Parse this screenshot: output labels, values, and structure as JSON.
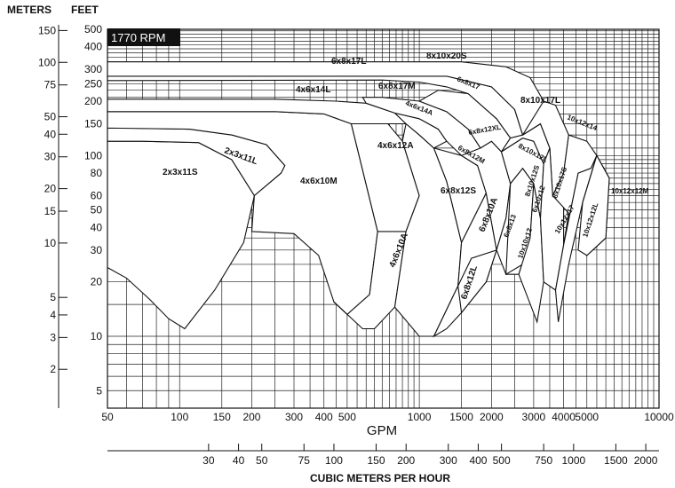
{
  "chart_data": {
    "type": "area",
    "title": "1770 RPM",
    "xlabel": "GPM",
    "x2label": "CUBIC METERS PER HOUR",
    "ylabel_left": "METERS",
    "ylabel_right": "FEET",
    "x_scale": "log",
    "y_scale": "log",
    "xlim": [
      50,
      10000
    ],
    "ylim_feet": [
      4,
      500
    ],
    "x_ticks": [
      "50",
      "100",
      "150",
      "200",
      "300",
      "400",
      "500",
      "1000",
      "1500",
      "2000",
      "3000",
      "4000",
      "5000",
      "10000"
    ],
    "x2_ticks": [
      "30",
      "40",
      "50",
      "75",
      "100",
      "150",
      "200",
      "300",
      "400",
      "500",
      "750",
      "1000",
      "1500",
      "2000"
    ],
    "feet_ticks": [
      "500",
      "400",
      "300",
      "250",
      "200",
      "150",
      "100",
      "80",
      "60",
      "50",
      "40",
      "30",
      "20",
      "10",
      "5"
    ],
    "meter_ticks": [
      "150",
      "100",
      "75",
      "50",
      "40",
      "30",
      "20",
      "15",
      "10",
      "5",
      "4",
      "3",
      "2"
    ],
    "grid": true,
    "series": [
      {
        "name": "2x3x11S",
        "points": [
          [
            50,
            24
          ],
          [
            60,
            21
          ],
          [
            75,
            16
          ],
          [
            90,
            12.5
          ],
          [
            105,
            11
          ],
          [
            140,
            18
          ],
          [
            185,
            33
          ],
          [
            205,
            60
          ],
          [
            165,
            95
          ],
          [
            120,
            118
          ],
          [
            70,
            120
          ],
          [
            50,
            120
          ]
        ]
      },
      {
        "name": "2x3x11L",
        "points": [
          [
            205,
            60
          ],
          [
            265,
            80
          ],
          [
            275,
            88
          ],
          [
            230,
            115
          ],
          [
            165,
            130
          ],
          [
            110,
            140
          ],
          [
            60,
            142
          ],
          [
            50,
            142
          ],
          [
            50,
            120
          ],
          [
            70,
            120
          ],
          [
            120,
            118
          ],
          [
            165,
            95
          ]
        ]
      },
      {
        "name": "4x6x10M",
        "points": [
          [
            200,
            38
          ],
          [
            300,
            37
          ],
          [
            380,
            28
          ],
          [
            440,
            15.5
          ],
          [
            500,
            13.2
          ],
          [
            620,
            17
          ],
          [
            670,
            38
          ],
          [
            520,
            150
          ],
          [
            400,
            170
          ],
          [
            250,
            175
          ],
          [
            100,
            175
          ],
          [
            50,
            175
          ],
          [
            50,
            142
          ],
          [
            110,
            140
          ],
          [
            165,
            130
          ],
          [
            230,
            115
          ],
          [
            275,
            88
          ],
          [
            265,
            80
          ],
          [
            205,
            60
          ]
        ]
      },
      {
        "name": "4x6x10A",
        "points": [
          [
            440,
            15.5
          ],
          [
            580,
            11
          ],
          [
            650,
            11
          ],
          [
            790,
            14.5
          ],
          [
            880,
            38
          ],
          [
            670,
            38
          ],
          [
            620,
            17
          ],
          [
            500,
            13.2
          ]
        ]
      },
      {
        "name": "4x6x12A",
        "points": [
          [
            670,
            38
          ],
          [
            880,
            38
          ],
          [
            1000,
            60
          ],
          [
            850,
            120
          ],
          [
            740,
            150
          ],
          [
            520,
            150
          ]
        ]
      },
      {
        "name": "4x6x14L",
        "points": [
          [
            50,
            205
          ],
          [
            250,
            205
          ],
          [
            450,
            200
          ],
          [
            600,
            195
          ],
          [
            790,
            172
          ],
          [
            880,
            150
          ],
          [
            740,
            150
          ],
          [
            520,
            150
          ],
          [
            400,
            170
          ],
          [
            250,
            175
          ],
          [
            100,
            175
          ],
          [
            50,
            175
          ]
        ]
      },
      {
        "name": "6x8x12S",
        "points": [
          [
            790,
            14.5
          ],
          [
            1000,
            10
          ],
          [
            1150,
            10
          ],
          [
            1450,
            19
          ],
          [
            1500,
            33
          ],
          [
            1300,
            72
          ],
          [
            1150,
            110
          ],
          [
            1000,
            130
          ],
          [
            880,
            150
          ],
          [
            850,
            120
          ],
          [
            1000,
            60
          ],
          [
            880,
            38
          ]
        ]
      },
      {
        "name": "6x8x12M",
        "points": [
          [
            1300,
            72
          ],
          [
            1500,
            33
          ],
          [
            1900,
            62
          ],
          [
            1750,
            88
          ],
          [
            1500,
            100
          ],
          [
            1150,
            110
          ]
        ]
      },
      {
        "name": "6x8x12L",
        "points": [
          [
            1150,
            10
          ],
          [
            1300,
            11
          ],
          [
            1500,
            13.5
          ],
          [
            1900,
            20
          ],
          [
            2100,
            30
          ],
          [
            1900,
            62
          ],
          [
            1500,
            33
          ],
          [
            1450,
            19
          ]
        ]
      },
      {
        "name": "6x8x10A",
        "points": [
          [
            1450,
            19
          ],
          [
            1650,
            27
          ],
          [
            2100,
            30
          ],
          [
            1900,
            20
          ],
          [
            1500,
            13.5
          ]
        ]
      },
      {
        "name": "4x6x14A",
        "points": [
          [
            880,
            150
          ],
          [
            1000,
            130
          ],
          [
            1150,
            110
          ],
          [
            1300,
            120
          ],
          [
            1200,
            140
          ],
          [
            1000,
            160
          ],
          [
            790,
            172
          ]
        ]
      },
      {
        "name": "6x8x17M",
        "points": [
          [
            600,
            195
          ],
          [
            790,
            172
          ],
          [
            1000,
            160
          ],
          [
            1200,
            140
          ],
          [
            1300,
            120
          ],
          [
            1500,
            100
          ],
          [
            1750,
            88
          ],
          [
            1800,
            110
          ],
          [
            1600,
            140
          ],
          [
            1300,
            175
          ],
          [
            1000,
            200
          ],
          [
            700,
            210
          ],
          [
            580,
            210
          ]
        ]
      },
      {
        "name": "6x8x12XL",
        "points": [
          [
            1500,
            100
          ],
          [
            1750,
            88
          ],
          [
            1900,
            62
          ],
          [
            2100,
            30
          ],
          [
            2300,
            45
          ],
          [
            2400,
            70
          ],
          [
            2200,
            105
          ],
          [
            2000,
            120
          ],
          [
            1800,
            110
          ]
        ]
      },
      {
        "name": "6x8x13",
        "points": [
          [
            2100,
            30
          ],
          [
            2300,
            22
          ],
          [
            2600,
            22
          ],
          [
            2900,
            35
          ],
          [
            2400,
            70
          ],
          [
            2300,
            45
          ]
        ]
      },
      {
        "name": "6x8x17",
        "points": [
          [
            1000,
            200
          ],
          [
            1300,
            175
          ],
          [
            1600,
            140
          ],
          [
            1800,
            110
          ],
          [
            2000,
            120
          ],
          [
            2200,
            105
          ],
          [
            2400,
            125
          ],
          [
            2100,
            160
          ],
          [
            1600,
            220
          ],
          [
            1200,
            230
          ]
        ]
      },
      {
        "name": "6x8x17L",
        "points": [
          [
            50,
            260
          ],
          [
            700,
            262
          ],
          [
            1000,
            255
          ],
          [
            1300,
            240
          ],
          [
            1600,
            220
          ],
          [
            2100,
            160
          ],
          [
            2400,
            125
          ],
          [
            2700,
            130
          ],
          [
            2500,
            180
          ],
          [
            2000,
            240
          ],
          [
            1300,
            275
          ],
          [
            50,
            275
          ]
        ]
      },
      {
        "name": "6x10x12",
        "points": [
          [
            2300,
            22
          ],
          [
            2700,
            25
          ],
          [
            2900,
            35
          ],
          [
            3000,
            70
          ],
          [
            2700,
            85
          ],
          [
            2400,
            70
          ]
        ]
      },
      {
        "name": "10x10x12",
        "points": [
          [
            2600,
            22
          ],
          [
            3100,
            12
          ],
          [
            3300,
            20
          ],
          [
            3200,
            45
          ],
          [
            3000,
            70
          ],
          [
            2900,
            35
          ]
        ]
      },
      {
        "name": "8x10x12S",
        "points": [
          [
            2400,
            70
          ],
          [
            2700,
            85
          ],
          [
            3000,
            70
          ],
          [
            3200,
            45
          ],
          [
            3300,
            90
          ],
          [
            3000,
            120
          ],
          [
            2700,
            125
          ],
          [
            2200,
            105
          ]
        ]
      },
      {
        "name": "8x10x12L",
        "points": [
          [
            2200,
            105
          ],
          [
            2700,
            125
          ],
          [
            3000,
            120
          ],
          [
            3300,
            90
          ],
          [
            3500,
            110
          ],
          [
            3200,
            150
          ],
          [
            2700,
            130
          ],
          [
            2400,
            125
          ]
        ]
      },
      {
        "name": "8x10x20S",
        "points": [
          [
            50,
            275
          ],
          [
            1300,
            275
          ],
          [
            2000,
            240
          ],
          [
            2500,
            180
          ],
          [
            2700,
            130
          ],
          [
            3200,
            150
          ],
          [
            3300,
            200
          ],
          [
            2900,
            270
          ],
          [
            2300,
            310
          ],
          [
            1500,
            330
          ],
          [
            50,
            330
          ]
        ]
      },
      {
        "name": "8x10x17L",
        "points": [
          [
            2700,
            130
          ],
          [
            3200,
            150
          ],
          [
            3500,
            110
          ],
          [
            3600,
            60
          ],
          [
            4000,
            80
          ],
          [
            4200,
            130
          ],
          [
            3700,
            190
          ],
          [
            3300,
            200
          ]
        ]
      },
      {
        "name": "8x10x17S",
        "points": [
          [
            3300,
            20
          ],
          [
            3700,
            18
          ],
          [
            4000,
            32
          ],
          [
            4000,
            80
          ],
          [
            3600,
            60
          ],
          [
            3500,
            110
          ],
          [
            3300,
            90
          ],
          [
            3200,
            45
          ]
        ]
      },
      {
        "name": "10x12x14",
        "points": [
          [
            3600,
            60
          ],
          [
            4000,
            80
          ],
          [
            4200,
            130
          ],
          [
            5000,
            120
          ],
          [
            5500,
            100
          ],
          [
            5200,
            85
          ],
          [
            4600,
            80
          ],
          [
            4000,
            32
          ],
          [
            4200,
            48
          ]
        ]
      },
      {
        "name": "10x12x17",
        "points": [
          [
            3700,
            18
          ],
          [
            3800,
            12
          ],
          [
            4200,
            25
          ],
          [
            4800,
            55
          ],
          [
            5500,
            100
          ],
          [
            5200,
            85
          ],
          [
            4600,
            80
          ],
          [
            4000,
            32
          ]
        ]
      },
      {
        "name": "10x12x12M",
        "points": [
          [
            5000,
            28
          ],
          [
            6000,
            35
          ],
          [
            6200,
            75
          ],
          [
            5500,
            100
          ],
          [
            4800,
            55
          ]
        ]
      },
      {
        "name": "10x12x12L",
        "points": [
          [
            4800,
            55
          ],
          [
            5500,
            100
          ],
          [
            6200,
            75
          ],
          [
            6000,
            35
          ],
          [
            5000,
            28
          ],
          [
            4600,
            30
          ]
        ]
      }
    ]
  },
  "labels": {
    "rpm": "1770 RPM",
    "pumps": {
      "p2x3x11S": "2x3x11S",
      "p2x3x11L": "2x3x11L",
      "p4x6x10M": "4x6x10M",
      "p4x6x10A": "4x6x10A",
      "p4x6x12A": "4x6x12A",
      "p4x6x14L": "4x6x14L",
      "p4x6x14A": "4x6x14A",
      "p6x8x12S": "6x8x12S",
      "p6x8x12M": "6x8x12M",
      "p6x8x12L": "6x8x12L",
      "p6x8x10A": "6x8x10A",
      "p6x8x12XL": "6x8x12XL",
      "p6x8x13": "6x8x13",
      "p6x8x17M": "6x8x17M",
      "p6x8x17": "6x8x17",
      "p6x8x17L": "6x8x17L",
      "p8x10x20S": "8x10x20S",
      "p8x10x17L": "8x10x17L",
      "p8x10x17S": "8x10x17S",
      "p8x10x12L": "8x10x12L",
      "p8x10x12S": "8x10x12S",
      "p6x10x12": "6x10x12",
      "p10x10x12": "10x10x12",
      "p10x12x14": "10x12x14",
      "p10x12x17": "10x12x17",
      "p10x12x12L": "10x12x12L",
      "p10x12x12M": "10x12x12M"
    }
  }
}
